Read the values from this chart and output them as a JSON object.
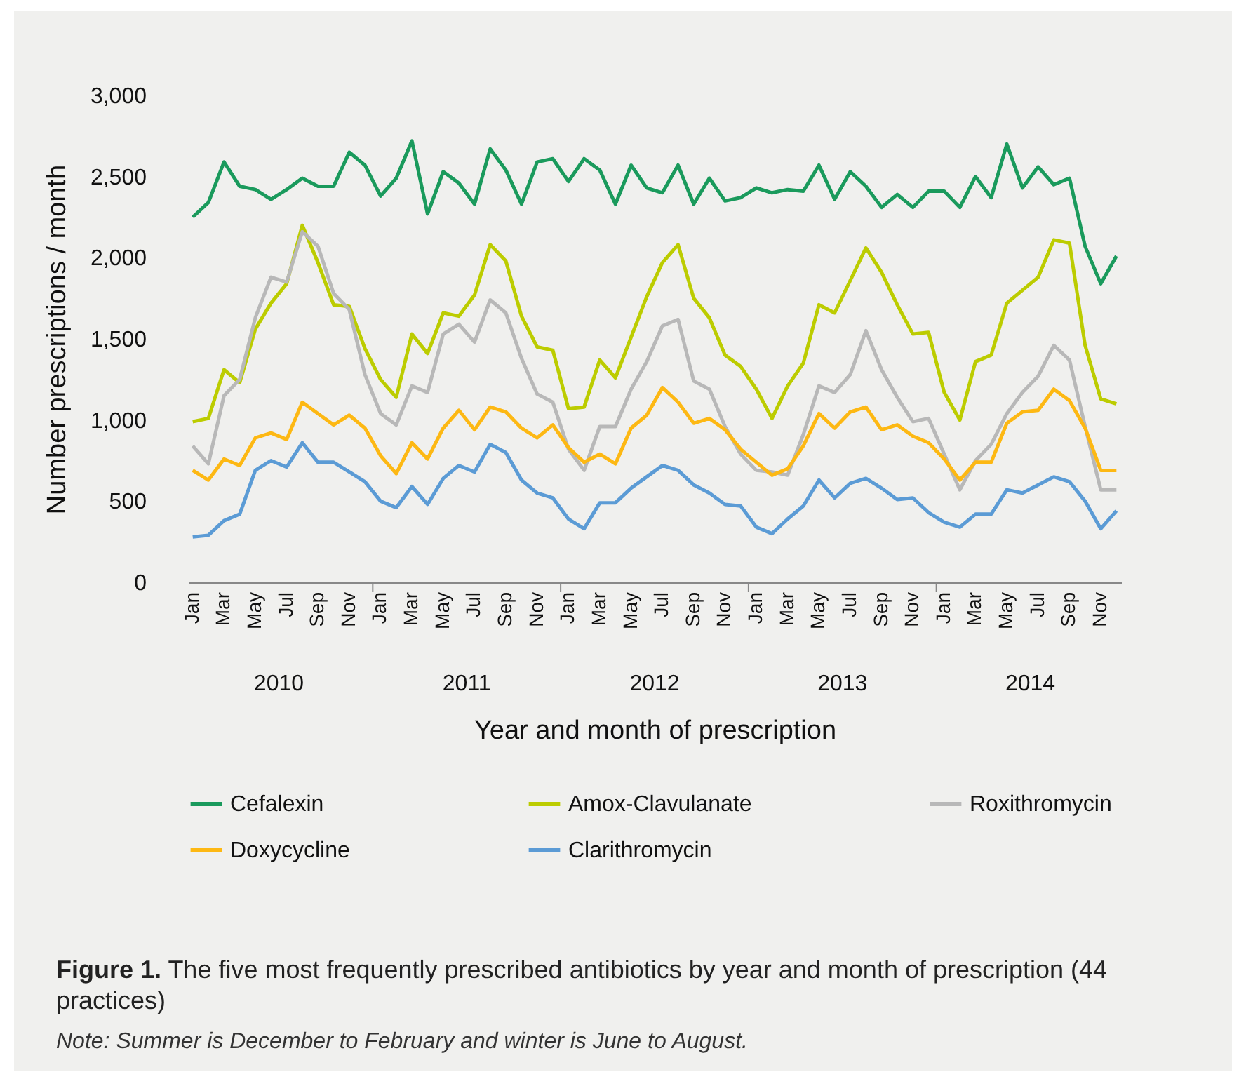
{
  "chart_data": {
    "type": "line",
    "title": "Figure 1. The five most frequently prescribed antibiotics by year and month of prescription (44 practices)",
    "xlabel": "Year and month of prescription",
    "ylabel": "Number prescriptions / month",
    "categories": [
      "Jan",
      null,
      "Mar",
      null,
      "May",
      null,
      "Jul",
      null,
      "Sep",
      null,
      "Nov",
      null,
      "Jan",
      null,
      "Mar",
      null,
      "May",
      null,
      "Jul",
      null,
      "Sep",
      null,
      "Nov",
      null,
      "Jan",
      null,
      "Mar",
      null,
      "May",
      null,
      "Jul",
      null,
      "Sep",
      null,
      "Nov",
      null,
      "Jan",
      null,
      "Mar",
      null,
      "May",
      null,
      "Jul",
      null,
      "Sep",
      null,
      "Nov",
      null,
      "Jan",
      null,
      "Mar",
      null,
      "May",
      null,
      "Jul",
      null,
      "Sep",
      null,
      "Nov",
      null
    ],
    "series": [
      {
        "name": "Cefalexin",
        "color": "#1a9a5c",
        "values": [
          2250,
          2340,
          2590,
          2440,
          2420,
          2360,
          2420,
          2490,
          2440,
          2440,
          2650,
          2570,
          2380,
          2490,
          2720,
          2270,
          2530,
          2460,
          2330,
          2670,
          2540,
          2330,
          2590,
          2610,
          2470,
          2610,
          2540,
          2330,
          2570,
          2430,
          2400,
          2570,
          2330,
          2490,
          2350,
          2370,
          2430,
          2400,
          2420,
          2410,
          2570,
          2360,
          2530,
          2440,
          2310,
          2390,
          2310,
          2410,
          2410,
          2310,
          2500,
          2370,
          2700,
          2430,
          2560,
          2450,
          2490,
          2070,
          1840,
          2010
        ]
      },
      {
        "name": "Amox-Clavulanate",
        "color": "#bccc00",
        "values": [
          990,
          1010,
          1310,
          1230,
          1560,
          1720,
          1840,
          2200,
          1970,
          1710,
          1700,
          1440,
          1250,
          1140,
          1530,
          1410,
          1660,
          1640,
          1770,
          2080,
          1980,
          1640,
          1450,
          1430,
          1070,
          1080,
          1370,
          1260,
          1510,
          1760,
          1970,
          2080,
          1750,
          1630,
          1400,
          1330,
          1190,
          1010,
          1210,
          1350,
          1710,
          1660,
          1860,
          2060,
          1910,
          1710,
          1530,
          1540,
          1170,
          1000,
          1360,
          1400,
          1720,
          1800,
          1880,
          2110,
          2090,
          1460,
          1130,
          1100
        ]
      },
      {
        "name": "Roxithromycin",
        "color": "#b8b8b8",
        "values": [
          840,
          730,
          1150,
          1250,
          1630,
          1880,
          1850,
          2160,
          2070,
          1780,
          1680,
          1280,
          1040,
          970,
          1210,
          1170,
          1530,
          1590,
          1480,
          1740,
          1660,
          1380,
          1160,
          1110,
          820,
          690,
          960,
          960,
          1190,
          1360,
          1580,
          1620,
          1240,
          1190,
          960,
          790,
          690,
          680,
          660,
          910,
          1210,
          1170,
          1280,
          1550,
          1310,
          1140,
          990,
          1010,
          790,
          570,
          750,
          850,
          1040,
          1170,
          1270,
          1460,
          1370,
          960,
          570,
          570
        ]
      },
      {
        "name": "Doxycycline",
        "color": "#fdb813",
        "values": [
          690,
          630,
          760,
          720,
          890,
          920,
          880,
          1110,
          1040,
          970,
          1030,
          950,
          780,
          670,
          860,
          760,
          950,
          1060,
          940,
          1080,
          1050,
          950,
          890,
          970,
          830,
          740,
          790,
          730,
          950,
          1030,
          1200,
          1110,
          980,
          1010,
          940,
          820,
          740,
          660,
          700,
          840,
          1040,
          950,
          1050,
          1080,
          940,
          970,
          900,
          860,
          760,
          630,
          740,
          740,
          980,
          1050,
          1060,
          1190,
          1120,
          950,
          690,
          690
        ]
      },
      {
        "name": "Clarithromycin",
        "color": "#5b9bd5",
        "values": [
          280,
          290,
          380,
          420,
          690,
          750,
          710,
          860,
          740,
          740,
          680,
          620,
          500,
          460,
          590,
          480,
          640,
          720,
          680,
          850,
          800,
          630,
          550,
          520,
          390,
          330,
          490,
          490,
          580,
          650,
          720,
          690,
          600,
          550,
          480,
          470,
          340,
          300,
          390,
          470,
          630,
          520,
          610,
          640,
          580,
          510,
          520,
          430,
          370,
          340,
          420,
          420,
          570,
          550,
          600,
          650,
          620,
          500,
          330,
          440
        ]
      }
    ],
    "ylim": [
      0,
      3000
    ],
    "yticks": [
      0,
      500,
      {
        "value": 1000,
        "label": "1,000"
      },
      {
        "value": 1500,
        "label": "1,500"
      },
      {
        "value": 2000,
        "label": "2,000"
      },
      {
        "value": 2500,
        "label": "2,500"
      },
      {
        "value": 3000,
        "label": "3,000"
      }
    ],
    "grid": false,
    "legend": "bottom",
    "marker": "none",
    "line_style": "solid",
    "annotations": [
      "2010",
      "2011",
      "2012",
      "2013",
      "2014",
      "Note: Summer is December to February and winter is June to August."
    ]
  }
}
